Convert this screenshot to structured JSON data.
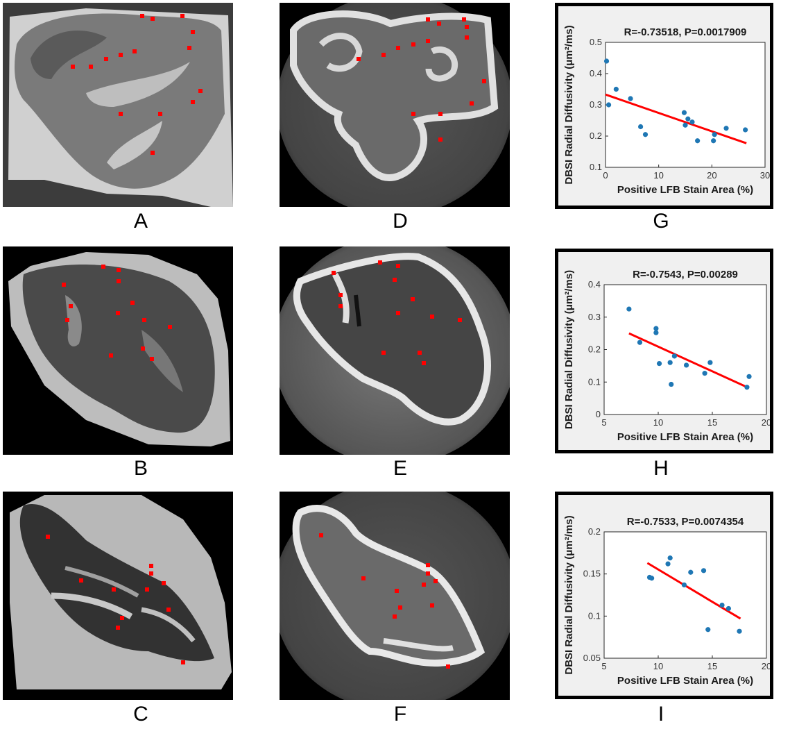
{
  "panel_labels": {
    "A": "A",
    "B": "B",
    "C": "C",
    "D": "D",
    "E": "E",
    "F": "F",
    "G": "G",
    "H": "H",
    "I": "I"
  },
  "colors": {
    "point": "#1f77b4",
    "fit_line": "#ff0000",
    "roi_marker": "#ff0000",
    "plot_bg": "#ffffff",
    "figure_bg": "#f0f0f0"
  },
  "chart_data": [
    {
      "type": "scatter",
      "panel": "G",
      "title": "R=-0.73518, P=0.0017909",
      "xlabel": "Positive LFB Stain Area (%)",
      "ylabel": "DBSI Radial Diffusivity (μm²/ms)",
      "xlim": [
        0,
        30
      ],
      "ylim": [
        0.1,
        0.5
      ],
      "xticks": [
        "0",
        "10",
        "20",
        "30"
      ],
      "yticks": [
        "0.1",
        "0.2",
        "0.3",
        "0.4",
        "0.5"
      ],
      "grid": false,
      "points": {
        "x": [
          0.2,
          0.6,
          2.0,
          4.7,
          6.6,
          7.5,
          14.8,
          15.0,
          15.5,
          16.3,
          17.3,
          20.3,
          20.5,
          22.7,
          26.3
        ],
        "y": [
          0.44,
          0.3,
          0.35,
          0.32,
          0.23,
          0.205,
          0.275,
          0.235,
          0.255,
          0.245,
          0.185,
          0.185,
          0.205,
          0.225,
          0.22
        ]
      },
      "fit_line": {
        "x": [
          0,
          26.5
        ],
        "y": [
          0.333,
          0.177
        ]
      }
    },
    {
      "type": "scatter",
      "panel": "H",
      "title": "R=-0.7543, P=0.00289",
      "xlabel": "Positive LFB Stain Area (%)",
      "ylabel": "DBSI Radial Diffusivity (μm²/ms)",
      "xlim": [
        5,
        20
      ],
      "ylim": [
        0,
        0.4
      ],
      "xticks": [
        "5",
        "10",
        "15",
        "20"
      ],
      "yticks": [
        "0",
        "0.1",
        "0.2",
        "0.3",
        "0.4"
      ],
      "grid": false,
      "points": {
        "x": [
          7.3,
          8.3,
          9.8,
          9.8,
          10.1,
          11.1,
          11.2,
          11.5,
          12.6,
          14.3,
          14.8,
          18.2,
          18.4
        ],
        "y": [
          0.325,
          0.222,
          0.265,
          0.252,
          0.157,
          0.16,
          0.093,
          0.18,
          0.152,
          0.127,
          0.16,
          0.084,
          0.117
        ]
      },
      "fit_line": {
        "x": [
          7.3,
          18.3
        ],
        "y": [
          0.25,
          0.083
        ]
      }
    },
    {
      "type": "scatter",
      "panel": "I",
      "title": "R=-0.7533, P=0.0074354",
      "xlabel": "Positive LFB Stain Area (%)",
      "ylabel": "DBSI Radial Diffusivity (μm²/ms)",
      "xlim": [
        5,
        20
      ],
      "ylim": [
        0.05,
        0.2
      ],
      "xticks": [
        "5",
        "10",
        "15",
        "20"
      ],
      "yticks": [
        "0.05",
        "0.1",
        "0.15",
        "0.2"
      ],
      "grid": false,
      "points": {
        "x": [
          9.2,
          9.4,
          10.9,
          11.1,
          12.4,
          13.0,
          14.2,
          14.6,
          15.9,
          16.5,
          17.5
        ],
        "y": [
          0.146,
          0.145,
          0.162,
          0.169,
          0.137,
          0.152,
          0.154,
          0.084,
          0.113,
          0.109,
          0.082
        ]
      },
      "fit_line": {
        "x": [
          9.0,
          17.6
        ],
        "y": [
          0.163,
          0.097
        ]
      }
    }
  ]
}
